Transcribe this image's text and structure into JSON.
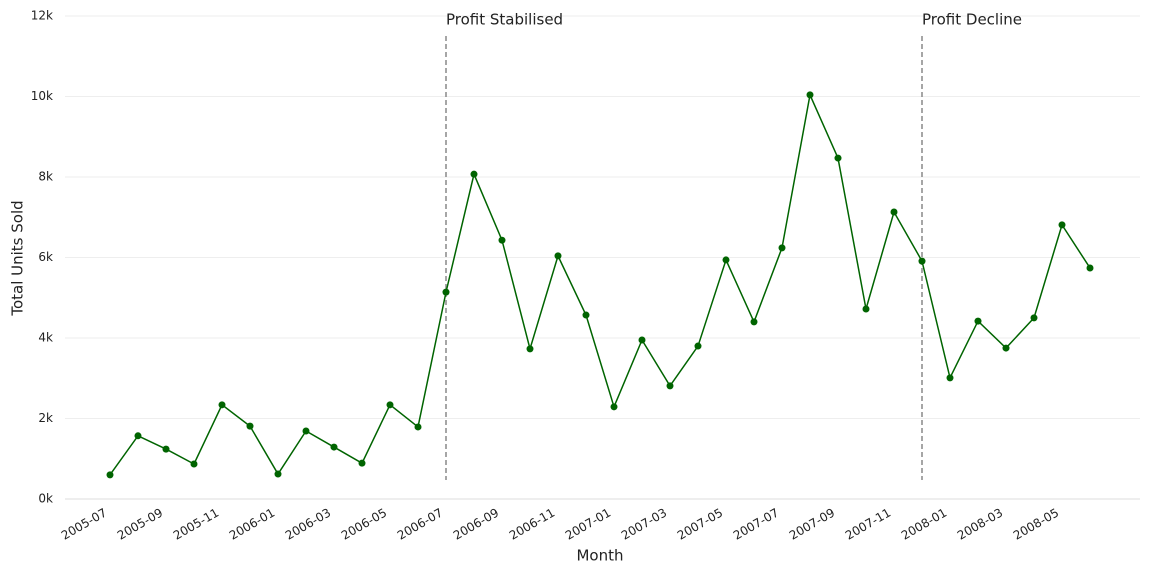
{
  "chart_data": {
    "type": "line",
    "x_label": "Month",
    "y_label": "Total Units Sold",
    "categories": [
      "2005-07",
      null,
      "2005-09",
      null,
      "2005-11",
      null,
      "2006-01",
      null,
      "2006-03",
      null,
      "2006-05",
      null,
      "2006-07",
      null,
      "2006-09",
      null,
      "2006-11",
      null,
      "2007-01",
      null,
      "2007-03",
      null,
      "2007-05",
      null,
      "2007-07",
      null,
      "2007-09",
      null,
      "2007-11",
      null,
      "2008-01",
      null,
      "2008-03",
      null,
      "2008-05",
      null
    ],
    "series": [
      {
        "name": "Total Units Sold",
        "color": "#006400",
        "values": [
          600,
          1570,
          1240,
          870,
          2340,
          1810,
          620,
          1690,
          1290,
          890,
          2340,
          1790,
          5140,
          8070,
          6430,
          3730,
          6040,
          4570,
          2290,
          3950,
          2810,
          3800,
          5940,
          4400,
          6240,
          10040,
          8470,
          4720,
          7130,
          5910,
          3010,
          4420,
          3750,
          4500,
          6810,
          5740
        ]
      }
    ],
    "ylim": [
      0,
      12000
    ],
    "yticks": [
      {
        "value": 0,
        "label": "0k"
      },
      {
        "value": 2000,
        "label": "2k"
      },
      {
        "value": 4000,
        "label": "4k"
      },
      {
        "value": 6000,
        "label": "6k"
      },
      {
        "value": 8000,
        "label": "8k"
      },
      {
        "value": 10000,
        "label": "10k"
      },
      {
        "value": 12000,
        "label": "12k"
      }
    ],
    "grid": true,
    "annotations": [
      {
        "text": "Profit Stabilised",
        "x_index": 12
      },
      {
        "text": "Profit Decline",
        "x_index": 29
      }
    ]
  }
}
